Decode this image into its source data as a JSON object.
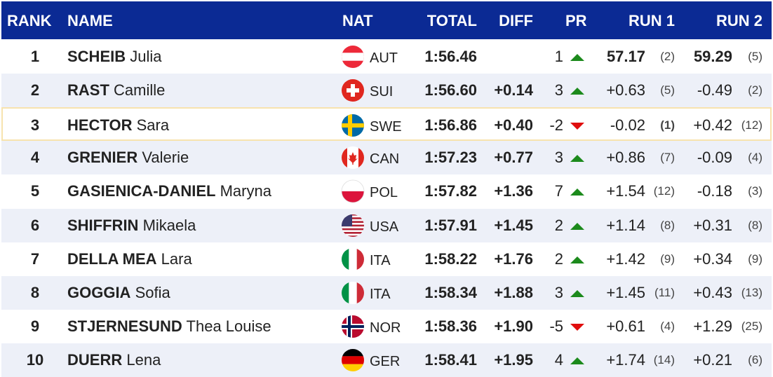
{
  "table": {
    "headers": [
      "RANK",
      "NAME",
      "NAT",
      "TOTAL",
      "DIFF",
      "PR",
      "RUN 1",
      "RUN 2"
    ],
    "highlighted_row": 2,
    "rows": [
      {
        "rank": "1",
        "surname": "SCHEIB",
        "given": "Julia",
        "nat": "AUT",
        "total": "1:56.46",
        "pr": 1,
        "run1": "57.17",
        "run1_rank": "(2)",
        "run2": "59.29",
        "run2_rank": "(5)"
      },
      {
        "rank": "2",
        "surname": "RAST",
        "given": "Camille",
        "nat": "SUI",
        "total": "1:56.60",
        "diff": "+0.14",
        "pr": 3,
        "run1": "+0.63",
        "run1_rank": "(5)",
        "run2": "-0.49",
        "run2_rank": "(2)"
      },
      {
        "rank": "3",
        "surname": "HECTOR",
        "given": "Sara",
        "nat": "SWE",
        "total": "1:56.86",
        "diff": "+0.40",
        "pr": -2,
        "run1": "-0.02",
        "run1_rank": "(1)",
        "run2": "+0.42",
        "run2_rank": "(12)"
      },
      {
        "rank": "4",
        "surname": "GRENIER",
        "given": "Valerie",
        "nat": "CAN",
        "total": "1:57.23",
        "diff": "+0.77",
        "pr": 3,
        "run1": "+0.86",
        "run1_rank": "(7)",
        "run2": "-0.09",
        "run2_rank": "(4)"
      },
      {
        "rank": "5",
        "surname": "GASIENICA-DANIEL",
        "given": "Maryna",
        "nat": "POL",
        "total": "1:57.82",
        "diff": "+1.36",
        "pr": 7,
        "run1": "+1.54",
        "run1_rank": "(12)",
        "run2": "-0.18",
        "run2_rank": "(3)"
      },
      {
        "rank": "6",
        "surname": "SHIFFRIN",
        "given": "Mikaela",
        "nat": "USA",
        "total": "1:57.91",
        "diff": "+1.45",
        "pr": 2,
        "run1": "+1.14",
        "run1_rank": "(8)",
        "run2": "+0.31",
        "run2_rank": "(8)"
      },
      {
        "rank": "7",
        "surname": "DELLA MEA",
        "given": "Lara",
        "nat": "ITA",
        "total": "1:58.22",
        "diff": "+1.76",
        "pr": 2,
        "run1": "+1.42",
        "run1_rank": "(9)",
        "run2": "+0.34",
        "run2_rank": "(9)"
      },
      {
        "rank": "8",
        "surname": "GOGGIA",
        "given": "Sofia",
        "nat": "ITA",
        "total": "1:58.34",
        "diff": "+1.88",
        "pr": 3,
        "run1": "+1.45",
        "run1_rank": "(11)",
        "run2": "+0.43",
        "run2_rank": "(13)"
      },
      {
        "rank": "9",
        "surname": "STJERNESUND",
        "given": "Thea Louise",
        "nat": "NOR",
        "total": "1:58.36",
        "diff": "+1.90",
        "pr": -5,
        "run1": "+0.61",
        "run1_rank": "(4)",
        "run2": "+1.29",
        "run2_rank": "(25)"
      },
      {
        "rank": "10",
        "surname": "DUERR",
        "given": "Lena",
        "nat": "GER",
        "total": "1:58.41",
        "diff": "+1.95",
        "pr": 4,
        "run1": "+1.74",
        "run1_rank": "(14)",
        "run2": "+0.21",
        "run2_rank": "(6)"
      }
    ]
  }
}
